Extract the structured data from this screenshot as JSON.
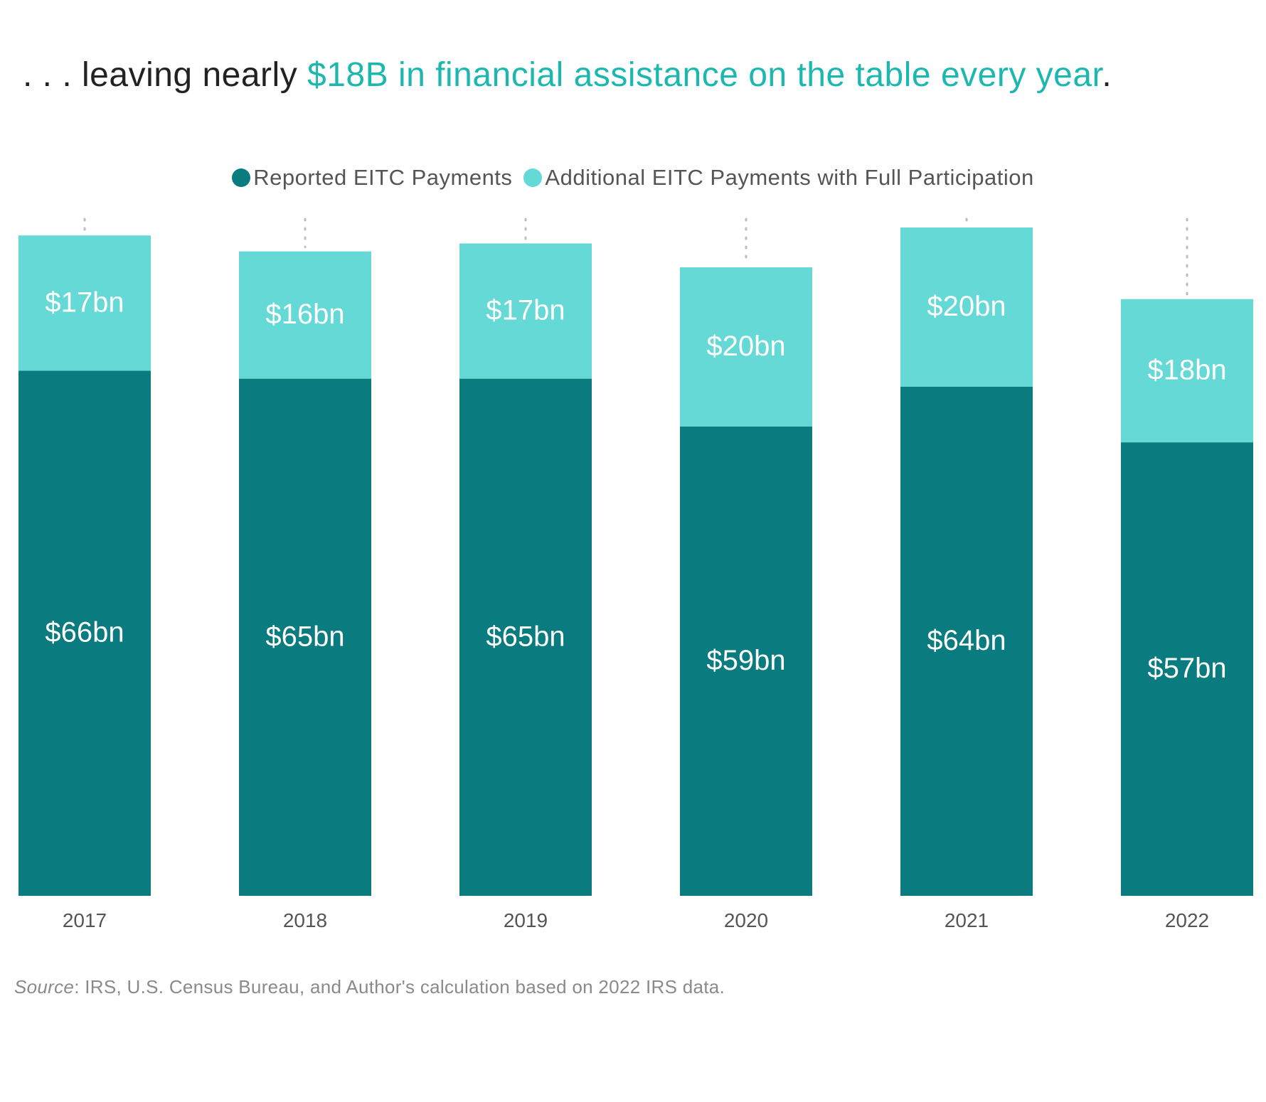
{
  "headline": {
    "prefix": ". . . leaving nearly ",
    "amount": "$18B",
    "middle": " in financial assistance on the table every year",
    "suffix": "."
  },
  "source": {
    "label": "Source",
    "text": ": IRS, U.S. Census Bureau, and Author's calculation based on 2022 IRS data."
  },
  "colors": {
    "reported": "#0a7b7f",
    "additional": "#64d9d6",
    "headline_accent": "#1cb8b0",
    "tick_label": "#555555",
    "guide_dots": "#bdbdbd"
  },
  "chart_data": {
    "type": "bar",
    "stacked": true,
    "title": ". . . leaving nearly $18B in financial assistance on the table every year.",
    "xlabel": "",
    "ylabel": "",
    "ylim": [
      0,
      84
    ],
    "grid": false,
    "legend_position": "top-center",
    "categories": [
      "2017",
      "2018",
      "2019",
      "2020",
      "2021",
      "2022"
    ],
    "series": [
      {
        "name": "Reported EITC Payments",
        "color": "#0a7b7f",
        "values": [
          66,
          65,
          65,
          59,
          64,
          57
        ],
        "labels": [
          "$66bn",
          "$65bn",
          "$65bn",
          "$59bn",
          "$64bn",
          "$57bn"
        ]
      },
      {
        "name": "Additional EITC Payments with Full Participation",
        "color": "#64d9d6",
        "values": [
          17,
          16,
          17,
          20,
          20,
          18
        ],
        "labels": [
          "$17bn",
          "$16bn",
          "$17bn",
          "$20bn",
          "$20bn",
          "$18bn"
        ]
      }
    ]
  }
}
